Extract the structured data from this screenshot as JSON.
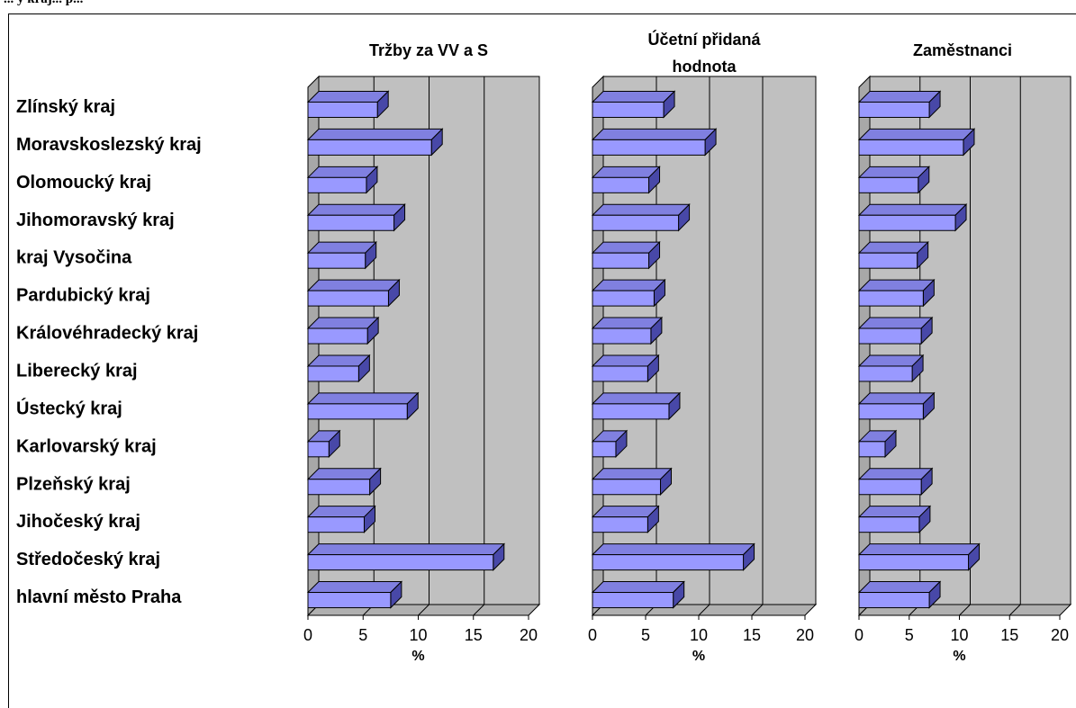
{
  "caption": "... y kraj... p...",
  "chart_data": {
    "type": "bar",
    "orientation": "horizontal",
    "categories": [
      "Zlínský kraj",
      "Moravskoslezský kraj",
      "Olomoucký kraj",
      "Jihomoravský kraj",
      "kraj Vysočina",
      "Pardubický kraj",
      "Královéhradecký kraj",
      "Liberecký kraj",
      "Ústecký kraj",
      "Karlovarský kraj",
      "Plzeňský kraj",
      "Jihočeský kraj",
      "Středočeský kraj",
      "hlavní město Praha"
    ],
    "xlim": [
      0,
      20
    ],
    "ticks": [
      "0",
      "5",
      "10",
      "15",
      "20"
    ],
    "xlabel": "%",
    "grid": true,
    "colors": {
      "bar_front": "#9999ff",
      "bar_top": "#8080e0",
      "bar_side": "#4848a8",
      "plot_bg": "#c0c0c0",
      "floor": "#b0b0b0",
      "wall_side": "#a8a8a8"
    },
    "panels": [
      {
        "title": [
          "Tržby za VV a S"
        ],
        "values": [
          6.3,
          11.2,
          5.3,
          7.8,
          5.2,
          7.3,
          5.4,
          4.6,
          9.0,
          1.9,
          5.6,
          5.1,
          16.8,
          7.5
        ]
      },
      {
        "title": [
          "Účetní přidaná",
          "hodnota"
        ],
        "values": [
          6.7,
          10.6,
          5.3,
          8.1,
          5.3,
          5.8,
          5.5,
          5.2,
          7.2,
          2.2,
          6.4,
          5.2,
          14.2,
          7.6
        ]
      },
      {
        "title": [
          "Zaměstnanci"
        ],
        "values": [
          7.0,
          10.4,
          5.9,
          9.6,
          5.8,
          6.4,
          6.2,
          5.3,
          6.4,
          2.6,
          6.2,
          6.0,
          10.9,
          7.0
        ]
      }
    ]
  }
}
